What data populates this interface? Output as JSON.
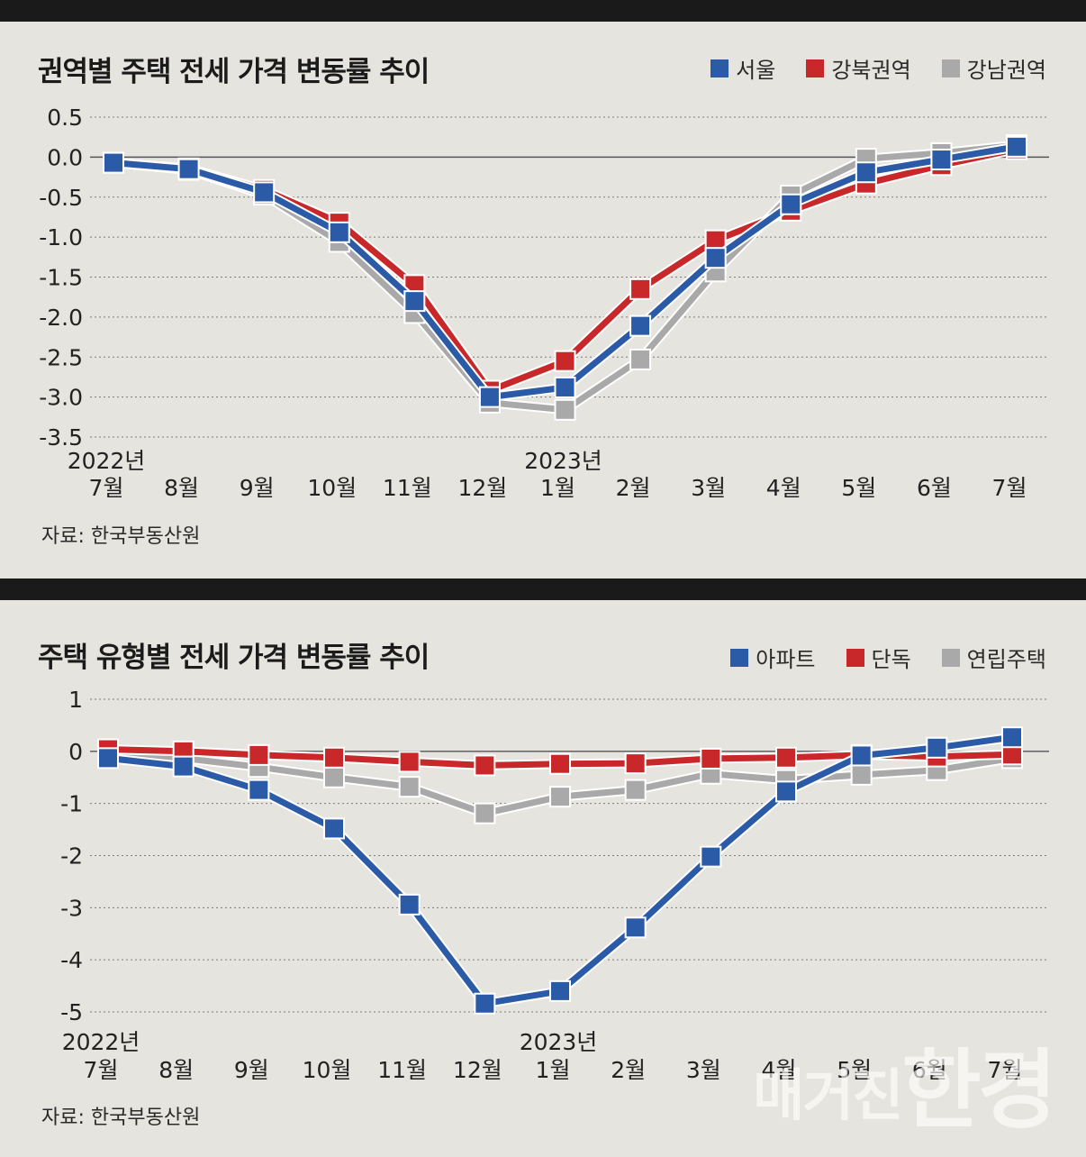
{
  "chart_data": [
    {
      "type": "line",
      "title": "권역별 주택 전세 가격 변동률 추이",
      "legend": [
        "서울",
        "강북권역",
        "강남권역"
      ],
      "year_labels": {
        "start": "2022년",
        "mid": "2023년"
      },
      "categories": [
        "7월",
        "8월",
        "9월",
        "10월",
        "11월",
        "12월",
        "1월",
        "2월",
        "3월",
        "4월",
        "5월",
        "6월",
        "7월"
      ],
      "ylim": [
        -3.5,
        0.5
      ],
      "yticks": [
        "0.5",
        "0.0",
        "-0.5",
        "-1.0",
        "-1.5",
        "-2.0",
        "-2.5",
        "-3.0",
        "-3.5"
      ],
      "ytick_values": [
        0.5,
        0.0,
        -0.5,
        -1.0,
        -1.5,
        -2.0,
        -2.5,
        -3.0,
        -3.5
      ],
      "series": [
        {
          "name": "강남권역",
          "color": "#a9a9a9",
          "values": [
            -0.07,
            -0.16,
            -0.47,
            -1.06,
            -1.95,
            -3.07,
            -3.16,
            -2.53,
            -1.43,
            -0.48,
            -0.02,
            0.05,
            0.15
          ]
        },
        {
          "name": "강북권역",
          "color": "#c8282a",
          "values": [
            -0.07,
            -0.14,
            -0.41,
            -0.82,
            -1.6,
            -2.92,
            -2.55,
            -1.65,
            -1.04,
            -0.67,
            -0.33,
            -0.1,
            0.1
          ]
        },
        {
          "name": "서울",
          "color": "#2b5ba7",
          "values": [
            -0.07,
            -0.15,
            -0.44,
            -0.94,
            -1.8,
            -3.0,
            -2.88,
            -2.11,
            -1.26,
            -0.59,
            -0.19,
            -0.03,
            0.13
          ]
        }
      ],
      "source": "자료: 한국부동산원"
    },
    {
      "type": "line",
      "title": "주택 유형별 전세 가격 변동률 추이",
      "legend": [
        "아파트",
        "단독",
        "연립주택"
      ],
      "year_labels": {
        "start": "2022년",
        "mid": "2023년"
      },
      "categories": [
        "7월",
        "8월",
        "9월",
        "10월",
        "11월",
        "12월",
        "1월",
        "2월",
        "3월",
        "4월",
        "5월",
        "6월",
        "7월"
      ],
      "ylim": [
        -5,
        1
      ],
      "yticks": [
        "1",
        "0",
        "-1",
        "-2",
        "-3",
        "-4",
        "-5"
      ],
      "ytick_values": [
        1,
        0,
        -1,
        -2,
        -3,
        -4,
        -5
      ],
      "series": [
        {
          "name": "연립주택",
          "color": "#a9a9a9",
          "values": [
            -0.02,
            -0.13,
            -0.3,
            -0.5,
            -0.68,
            -1.19,
            -0.87,
            -0.74,
            -0.43,
            -0.55,
            -0.45,
            -0.36,
            -0.13
          ]
        },
        {
          "name": "단독",
          "color": "#c8282a",
          "values": [
            0.04,
            0.0,
            -0.07,
            -0.12,
            -0.2,
            -0.27,
            -0.24,
            -0.23,
            -0.14,
            -0.12,
            -0.07,
            -0.1,
            -0.06
          ]
        },
        {
          "name": "아파트",
          "color": "#2b5ba7",
          "values": [
            -0.13,
            -0.29,
            -0.74,
            -1.48,
            -2.94,
            -4.84,
            -4.6,
            -3.38,
            -2.02,
            -0.77,
            -0.08,
            0.07,
            0.27
          ]
        }
      ],
      "source": "자료: 한국부동산원"
    }
  ],
  "watermark": {
    "small": "매거진",
    "big": "한경"
  },
  "colors": {
    "background": "#e6e4de",
    "blue": "#2b5ba7",
    "red": "#c8282a",
    "gray": "#a9a9a9"
  }
}
